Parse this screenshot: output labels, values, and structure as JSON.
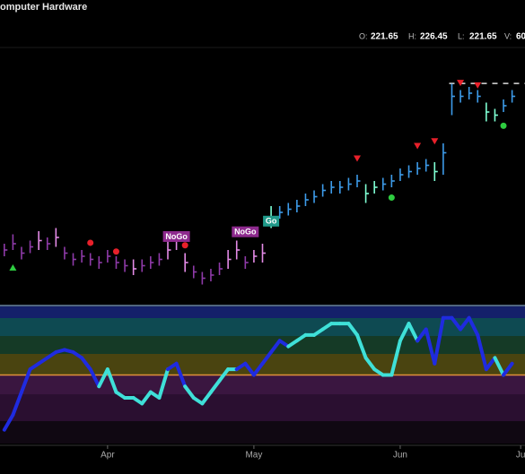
{
  "header": {
    "title": "omputer Hardware",
    "ohlc": [
      {
        "label": "O:",
        "value": "221.65"
      },
      {
        "label": "H:",
        "value": "226.45"
      },
      {
        "label": "L:",
        "value": "221.65"
      },
      {
        "label": "V:",
        "value": "60"
      }
    ]
  },
  "chart_data": {
    "type": "ohlc",
    "xlim": [
      -0.5,
      60.5
    ],
    "xticks": [
      {
        "value": 12,
        "label": "Apr"
      },
      {
        "value": 29,
        "label": "May"
      },
      {
        "value": 46,
        "label": "Jun"
      },
      {
        "value": 60,
        "label": "Ju"
      }
    ],
    "ylim": [
      156,
      236
    ],
    "close": [
      172,
      174,
      171,
      173,
      175,
      174,
      176,
      171,
      169,
      170,
      169,
      168,
      170,
      168,
      167,
      166,
      167,
      168,
      169,
      172,
      175,
      168,
      165,
      163,
      164,
      166,
      169,
      172,
      168,
      170,
      171,
      182,
      184,
      185,
      186,
      188,
      189,
      191,
      192,
      192,
      193,
      194,
      190,
      192,
      193,
      194,
      196,
      197,
      198,
      199,
      197,
      203,
      221,
      221,
      222,
      221,
      216,
      215,
      218,
      221
    ],
    "high": [
      174,
      177,
      173,
      175,
      178,
      176,
      179,
      173,
      171,
      172,
      171,
      170,
      172,
      170,
      169,
      169,
      169,
      170,
      171,
      175,
      178,
      171,
      167,
      165,
      166,
      168,
      172,
      175,
      170,
      172,
      174,
      186,
      186,
      187,
      188,
      190,
      191,
      193,
      194,
      194,
      195,
      196,
      193,
      194,
      195,
      196,
      198,
      199,
      200,
      201,
      200,
      206,
      225,
      223,
      224,
      223,
      219,
      217,
      220,
      223
    ],
    "low": [
      170,
      172,
      169,
      171,
      172,
      172,
      173,
      169,
      167,
      168,
      167,
      166,
      168,
      166,
      165,
      164,
      165,
      166,
      167,
      169,
      172,
      165,
      163,
      161,
      162,
      164,
      166,
      169,
      166,
      168,
      168,
      179,
      182,
      183,
      184,
      186,
      187,
      189,
      190,
      190,
      191,
      192,
      187,
      190,
      191,
      192,
      194,
      195,
      196,
      197,
      194,
      196,
      215,
      219,
      220,
      219,
      213,
      213,
      216,
      219
    ],
    "colors": [
      "#8e3aa8",
      "#8e3aa8",
      "#8e3aa8",
      "#8e3aa8",
      "#e38ae6",
      "#8e3aa8",
      "#e38ae6",
      "#8e3aa8",
      "#8e3aa8",
      "#8e3aa8",
      "#8e3aa8",
      "#8e3aa8",
      "#8e3aa8",
      "#8e3aa8",
      "#8e3aa8",
      "#e38ae6",
      "#8e3aa8",
      "#8e3aa8",
      "#8e3aa8",
      "#e38ae6",
      "#e38ae6",
      "#e38ae6",
      "#8e3aa8",
      "#8e3aa8",
      "#8e3aa8",
      "#8e3aa8",
      "#e38ae6",
      "#e38ae6",
      "#8e3aa8",
      "#e38ae6",
      "#e38ae6",
      "#7fffd4",
      "#3d9be9",
      "#3d9be9",
      "#3d9be9",
      "#3d9be9",
      "#3d9be9",
      "#3d9be9",
      "#3d9be9",
      "#3d9be9",
      "#3d9be9",
      "#3d9be9",
      "#7fffd4",
      "#7fffd4",
      "#3d9be9",
      "#3d9be9",
      "#3d9be9",
      "#3d9be9",
      "#3d9be9",
      "#3d9be9",
      "#7fffd4",
      "#3d9be9",
      "#3d9be9",
      "#3d9be9",
      "#3d9be9",
      "#3d9be9",
      "#7fffd4",
      "#7fffd4",
      "#3d9be9",
      "#3d9be9"
    ],
    "markers": [
      {
        "index": 1,
        "value": 166.3,
        "shape": "triangle-up",
        "color": "#2ecc40"
      },
      {
        "index": 10,
        "value": 174.3,
        "shape": "dot",
        "color": "#e8202a"
      },
      {
        "index": 13,
        "value": 171.5,
        "shape": "dot",
        "color": "#e8202a"
      },
      {
        "index": 21,
        "value": 173.5,
        "shape": "dot",
        "color": "#e8202a"
      },
      {
        "index": 41,
        "value": 201.3,
        "shape": "triangle-down",
        "color": "#e8202a"
      },
      {
        "index": 45,
        "value": 188.7,
        "shape": "dot",
        "color": "#2ecc40"
      },
      {
        "index": 48,
        "value": 205.3,
        "shape": "triangle-down",
        "color": "#e8202a"
      },
      {
        "index": 50,
        "value": 206.8,
        "shape": "triangle-down",
        "color": "#e8202a"
      },
      {
        "index": 53,
        "value": 225.4,
        "shape": "triangle-down",
        "color": "#e8202a"
      },
      {
        "index": 55,
        "value": 224.6,
        "shape": "triangle-down",
        "color": "#e8202a"
      },
      {
        "index": 58,
        "value": 211.6,
        "shape": "dot",
        "color": "#2ecc40"
      }
    ],
    "annotations": [
      {
        "index": 20,
        "value": 176.3,
        "text": "NoGo",
        "color": "#8e2a8e"
      },
      {
        "index": 28,
        "value": 177.8,
        "text": "NoGo",
        "color": "#8e2a8e"
      },
      {
        "index": 31,
        "value": 181.2,
        "text": "Go",
        "color": "#1f9a8a"
      }
    ],
    "resistance": {
      "value": 225.1,
      "start": 52
    },
    "oscillator": {
      "ylim": [
        -6,
        6
      ],
      "reference_line": 0,
      "values": [
        -4.8,
        -3.5,
        -1.5,
        0.5,
        1.0,
        1.5,
        2.0,
        2.2,
        2.0,
        1.5,
        0.5,
        -1.0,
        0.5,
        -1.5,
        -2.0,
        -2.0,
        -2.5,
        -1.5,
        -2.0,
        0.5,
        1.0,
        -1.0,
        -2.0,
        -2.5,
        -1.5,
        -0.5,
        0.5,
        0.5,
        1.0,
        0.0,
        1.0,
        2.0,
        3.0,
        2.5,
        3.0,
        3.5,
        3.5,
        4.0,
        4.5,
        4.5,
        4.5,
        3.5,
        1.5,
        0.5,
        0.0,
        0.0,
        3.0,
        4.5,
        3.0,
        4.0,
        1.0,
        5.0,
        5.0,
        4.0,
        5.0,
        3.5,
        0.5,
        1.5,
        0.0,
        1.0
      ],
      "colors": [
        "#1f2be0",
        "#1f2be0",
        "#1f2be0",
        "#1f2be0",
        "#1f2be0",
        "#1f2be0",
        "#1f2be0",
        "#1f2be0",
        "#1f2be0",
        "#1f2be0",
        "#1f2be0",
        "#1f2be0",
        "#3fe0d8",
        "#3fe0d8",
        "#3fe0d8",
        "#3fe0d8",
        "#3fe0d8",
        "#3fe0d8",
        "#3fe0d8",
        "#3fe0d8",
        "#1f2be0",
        "#1f2be0",
        "#3fe0d8",
        "#3fe0d8",
        "#3fe0d8",
        "#3fe0d8",
        "#3fe0d8",
        "#3fe0d8",
        "#1f2be0",
        "#1f2be0",
        "#1f2be0",
        "#1f2be0",
        "#1f2be0",
        "#1f2be0",
        "#3fe0d8",
        "#3fe0d8",
        "#3fe0d8",
        "#3fe0d8",
        "#3fe0d8",
        "#3fe0d8",
        "#3fe0d8",
        "#3fe0d8",
        "#3fe0d8",
        "#3fe0d8",
        "#3fe0d8",
        "#3fe0d8",
        "#3fe0d8",
        "#3fe0d8",
        "#3fe0d8",
        "#1f2be0",
        "#1f2be0",
        "#1f2be0",
        "#1f2be0",
        "#1f2be0",
        "#1f2be0",
        "#1f2be0",
        "#1f2be0",
        "#1f2be0",
        "#3fe0d8",
        "#1f2be0"
      ]
    }
  }
}
